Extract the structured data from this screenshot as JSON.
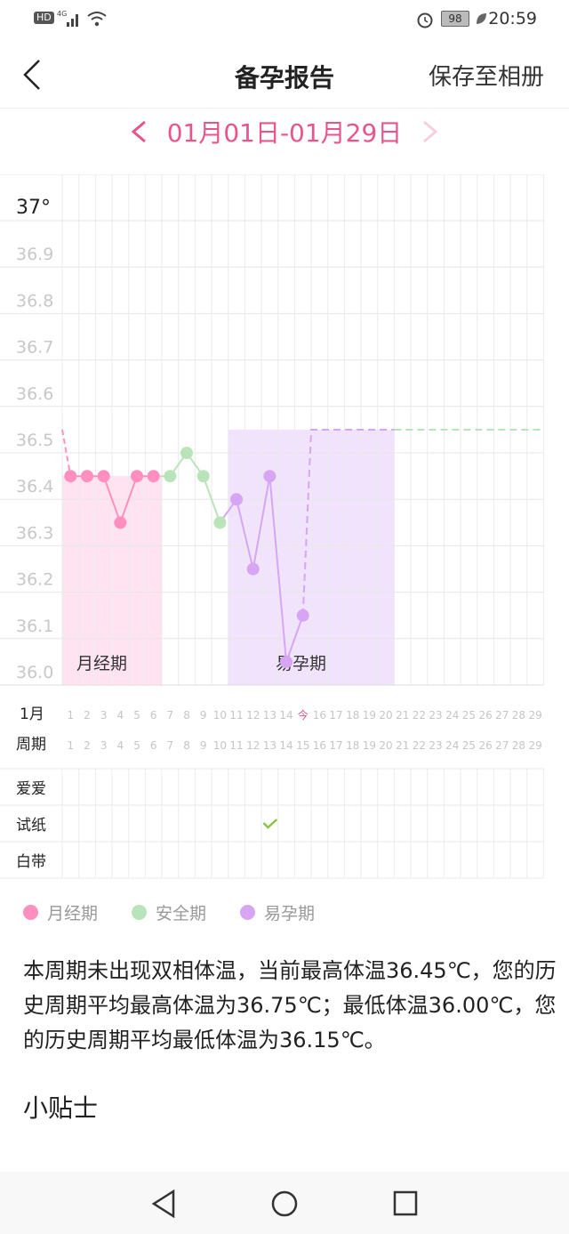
{
  "status_bar": {
    "left": "HD 4G",
    "time": "20:59",
    "battery": "98"
  },
  "header": {
    "title": "备孕报告",
    "save_label": "保存至相册",
    "back_icon": "chevron-left-icon"
  },
  "range": {
    "label": "01月01日-01月29日",
    "prev_icon": "chevron-left-icon",
    "next_icon": "chevron-right-icon"
  },
  "chart_data": {
    "type": "line",
    "y_ticks": [
      "37°",
      "36.9",
      "36.8",
      "36.7",
      "36.6",
      "36.5",
      "36.4",
      "36.3",
      "36.2",
      "36.1",
      "36.0"
    ],
    "ylim": [
      36.0,
      37.0
    ],
    "x": [
      1,
      2,
      3,
      4,
      5,
      6,
      7,
      8,
      9,
      10,
      11,
      12,
      13,
      14,
      15
    ],
    "values": [
      36.4,
      36.4,
      36.4,
      36.3,
      36.4,
      36.4,
      36.4,
      36.45,
      36.4,
      36.3,
      36.35,
      36.2,
      36.4,
      36.0,
      36.1
    ],
    "phases": [
      "月经期",
      "月经期",
      "月经期",
      "月经期",
      "月经期",
      "月经期",
      "安全期",
      "安全期",
      "安全期",
      "安全期",
      "易孕期",
      "易孕期",
      "易孕期",
      "易孕期",
      "易孕期"
    ],
    "predicted_level": 36.5,
    "bands": [
      {
        "label": "月经期",
        "from": 1,
        "to": 6,
        "color": "#ffe3f0"
      },
      {
        "label": "易孕期",
        "from": 11,
        "to": 20,
        "color": "#f1e3fc"
      }
    ],
    "grid": true
  },
  "colors": {
    "menstrual": "#ff8fbf",
    "safe": "#b9e3b9",
    "fertile": "#d6a6f5",
    "accent": "#e8558d",
    "check": "#8bc34a"
  },
  "rows": {
    "month_label": "1月",
    "month_days": [
      "1",
      "2",
      "3",
      "4",
      "5",
      "6",
      "7",
      "8",
      "9",
      "10",
      "11",
      "12",
      "13",
      "14",
      "今",
      "16",
      "17",
      "18",
      "19",
      "20",
      "21",
      "22",
      "23",
      "24",
      "25",
      "26",
      "27",
      "28",
      "29"
    ],
    "cycle_label": "周期",
    "cycle_days": [
      "1",
      "2",
      "3",
      "4",
      "5",
      "6",
      "7",
      "8",
      "9",
      "10",
      "11",
      "12",
      "13",
      "14",
      "15",
      "16",
      "17",
      "18",
      "19",
      "20",
      "21",
      "22",
      "23",
      "24",
      "25",
      "26",
      "27",
      "28",
      "29"
    ],
    "records": [
      {
        "label": "爱爱",
        "checks": []
      },
      {
        "label": "试纸",
        "checks": [
          13
        ]
      },
      {
        "label": "白带",
        "checks": []
      }
    ]
  },
  "legend": [
    {
      "label": "月经期",
      "color": "#ff8fbf"
    },
    {
      "label": "安全期",
      "color": "#b9e3b9"
    },
    {
      "label": "易孕期",
      "color": "#d6a6f5"
    }
  ],
  "summary": "本周期未出现双相体温，当前最高体温36.45℃，您的历史周期平均最高体温为36.75℃；最低体温36.00℃，您的历史周期平均最低体温为36.15℃。",
  "tips_title": "小贴士"
}
